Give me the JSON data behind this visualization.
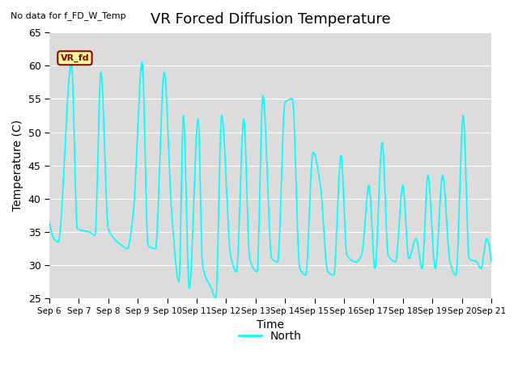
{
  "title": "VR Forced Diffusion Temperature",
  "no_data_label": "No data for f_FD_W_Temp",
  "xlabel": "Time",
  "ylabel": "Temperature (C)",
  "ylim": [
    25,
    65
  ],
  "yticks": [
    25,
    30,
    35,
    40,
    45,
    50,
    55,
    60,
    65
  ],
  "legend_label": "North",
  "legend_color": "#00FFFF",
  "annotation_text": "VR_fd",
  "annotation_color": "#8B0000",
  "annotation_bg": "#FFFF99",
  "line_color": "#00FFFF",
  "background_color": "#DCDCDC",
  "xtick_labels": [
    "Sep 6",
    "Sep 7",
    "Sep 8",
    "Sep 9",
    "Sep 10",
    "Sep 11",
    "Sep 12",
    "Sep 13",
    "Sep 14",
    "Sep 15",
    "Sep 16",
    "Sep 17",
    "Sep 18",
    "Sep 19",
    "Sep 20",
    "Sep 21"
  ],
  "keypoints_x": [
    0.0,
    0.15,
    0.3,
    0.75,
    0.95,
    1.35,
    1.55,
    1.75,
    2.0,
    2.2,
    2.45,
    2.65,
    2.85,
    3.15,
    3.35,
    3.6,
    3.9,
    4.15,
    4.4,
    4.55,
    4.75,
    5.05,
    5.2,
    5.5,
    5.65,
    5.85,
    6.15,
    6.35,
    6.6,
    6.8,
    7.05,
    7.25,
    7.55,
    7.75,
    8.0,
    8.25,
    8.5,
    8.7,
    8.95,
    9.2,
    9.45,
    9.65,
    9.9,
    10.1,
    10.4,
    10.6,
    10.85,
    11.05,
    11.3,
    11.5,
    11.75,
    12.0,
    12.2,
    12.45,
    12.65,
    12.85,
    13.1,
    13.35,
    13.6,
    13.8,
    14.05,
    14.25,
    14.5,
    14.65,
    14.85,
    15.0
  ],
  "keypoints_y": [
    36.5,
    34.0,
    33.5,
    60.5,
    35.5,
    35.0,
    34.5,
    59.0,
    35.5,
    34.0,
    33.0,
    32.5,
    38.0,
    60.5,
    33.0,
    32.5,
    59.0,
    38.0,
    27.5,
    52.5,
    26.5,
    52.0,
    30.0,
    26.5,
    25.0,
    52.5,
    31.5,
    29.0,
    52.0,
    31.0,
    29.0,
    55.5,
    31.0,
    30.5,
    54.5,
    55.0,
    29.5,
    28.5,
    47.0,
    42.0,
    29.0,
    28.5,
    46.5,
    31.5,
    30.5,
    31.5,
    42.0,
    29.5,
    48.5,
    31.5,
    30.5,
    42.0,
    31.0,
    34.0,
    29.5,
    43.5,
    29.5,
    43.5,
    30.5,
    28.5,
    52.5,
    31.0,
    30.5,
    29.5,
    34.0,
    30.5
  ]
}
